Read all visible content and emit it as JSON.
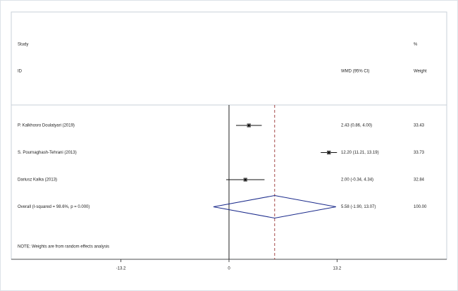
{
  "chart_data": {
    "type": "forest",
    "headers": {
      "study": "Study",
      "id": "ID",
      "ci": "WMD (95% CI)",
      "pct": "%",
      "weight": "Weight"
    },
    "studies": [
      {
        "name": "P. Kalkhosro Doulatyari (2019)",
        "estimate": 2.43,
        "lower": 0.86,
        "upper": 4.0,
        "ci_label": "2.43 (0.86, 4.00)",
        "weight": 33.43
      },
      {
        "name": "S. Pournaghash-Tehrani (2013)",
        "estimate": 12.2,
        "lower": 11.21,
        "upper": 13.19,
        "ci_label": "12.20 (11.21, 13.19)",
        "weight": 33.73
      },
      {
        "name": "Dariusz Kalka (2013)",
        "estimate": 2.0,
        "lower": -0.34,
        "upper": 4.34,
        "ci_label": "2.00 (-0.34, 4.34)",
        "weight": 32.84
      }
    ],
    "overall": {
      "name": "Overall  (I-squared = 98.6%, p = 0.000)",
      "estimate": 5.58,
      "lower": -1.9,
      "upper": 13.07,
      "ci_label": "5.58 (-1.90, 13.07)",
      "weight": 100,
      "weight_label": "100.00"
    },
    "note": "NOTE: Weights are from random effects analysis",
    "xlim": [
      -26.6,
      26.6
    ],
    "xticks": [
      -13.2,
      0,
      13.2
    ],
    "reference_color": "#8b1a1a"
  }
}
